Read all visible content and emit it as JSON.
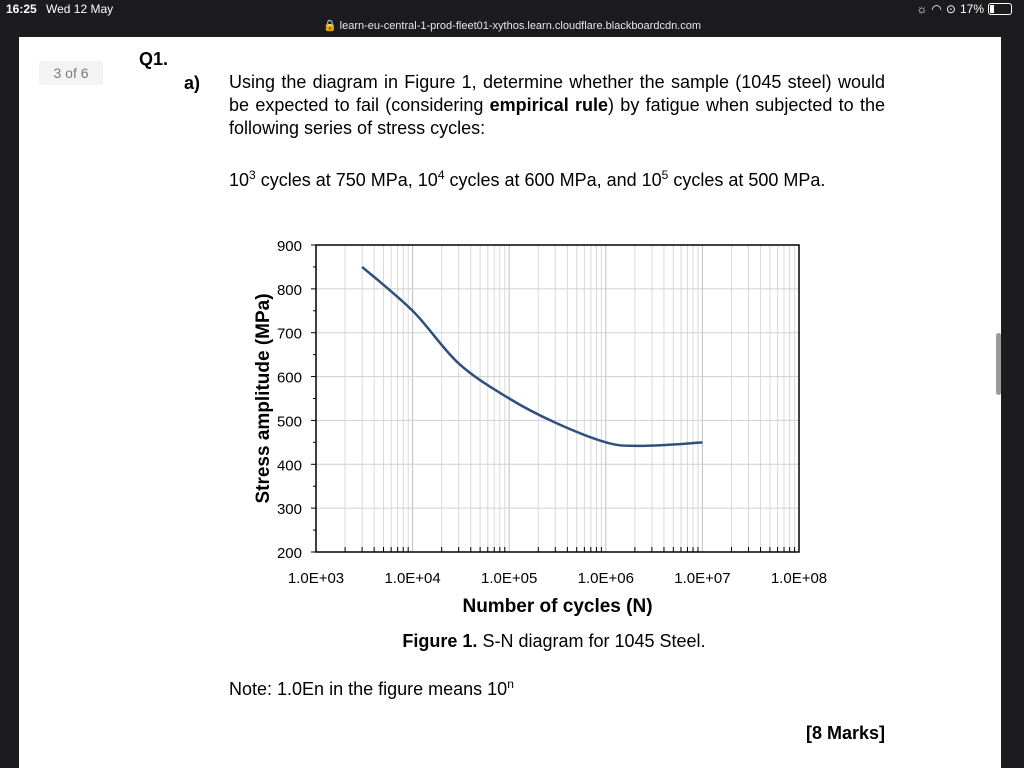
{
  "status_bar": {
    "time": "16:25",
    "date": "Wed 12 May",
    "battery": "17%"
  },
  "browser": {
    "url": "learn-eu-central-1-prod-fleet01-xythos.learn.cloudflare.blackboardcdn.com"
  },
  "viewer": {
    "page_indicator": "3 of 6"
  },
  "question": {
    "number": "Q1.",
    "part": "a)",
    "text_1": "Using the diagram in Figure 1, determine whether the sample (1045 steel) would be expected to fail (considering ",
    "text_bold": "empirical rule",
    "text_2": ") by fatigue when subjected to the following series of stress cycles:",
    "load_1_prefix": "10",
    "load_1_exp": "3",
    "load_1_text": " cycles at 750 MPa, ",
    "load_2_prefix": "10",
    "load_2_exp": "4",
    "load_2_text": " cycles at 600 MPa, and ",
    "load_3_prefix": "10",
    "load_3_exp": "5",
    "load_3_text": " cycles at 500 MPa.",
    "figure_label": "Figure 1.",
    "figure_caption": " S-N diagram for 1045 Steel.",
    "note_prefix": "Note: 1.0En in the figure means 10",
    "note_exp": "n",
    "marks": "[8 Marks]"
  },
  "chart_data": {
    "type": "line",
    "xlabel": "Number of cycles (N)",
    "ylabel": "Stress amplitude (MPa)",
    "x_scale": "log",
    "xlim": [
      1000,
      100000000
    ],
    "ylim": [
      200,
      900
    ],
    "x_tick_labels": [
      "1.0E+03",
      "1.0E+04",
      "1.0E+05",
      "1.0E+06",
      "1.0E+07",
      "1.0E+08"
    ],
    "y_tick_labels": [
      "900",
      "800",
      "700",
      "600",
      "500",
      "400",
      "300",
      "200"
    ],
    "grid": "on",
    "series": [
      {
        "color": "#2f4f7f",
        "x": [
          3000,
          10000,
          30000,
          100000,
          300000,
          1000000,
          2000000,
          5000000,
          10000000
        ],
        "y": [
          850,
          750,
          630,
          550,
          495,
          450,
          442,
          445,
          450
        ]
      }
    ]
  }
}
